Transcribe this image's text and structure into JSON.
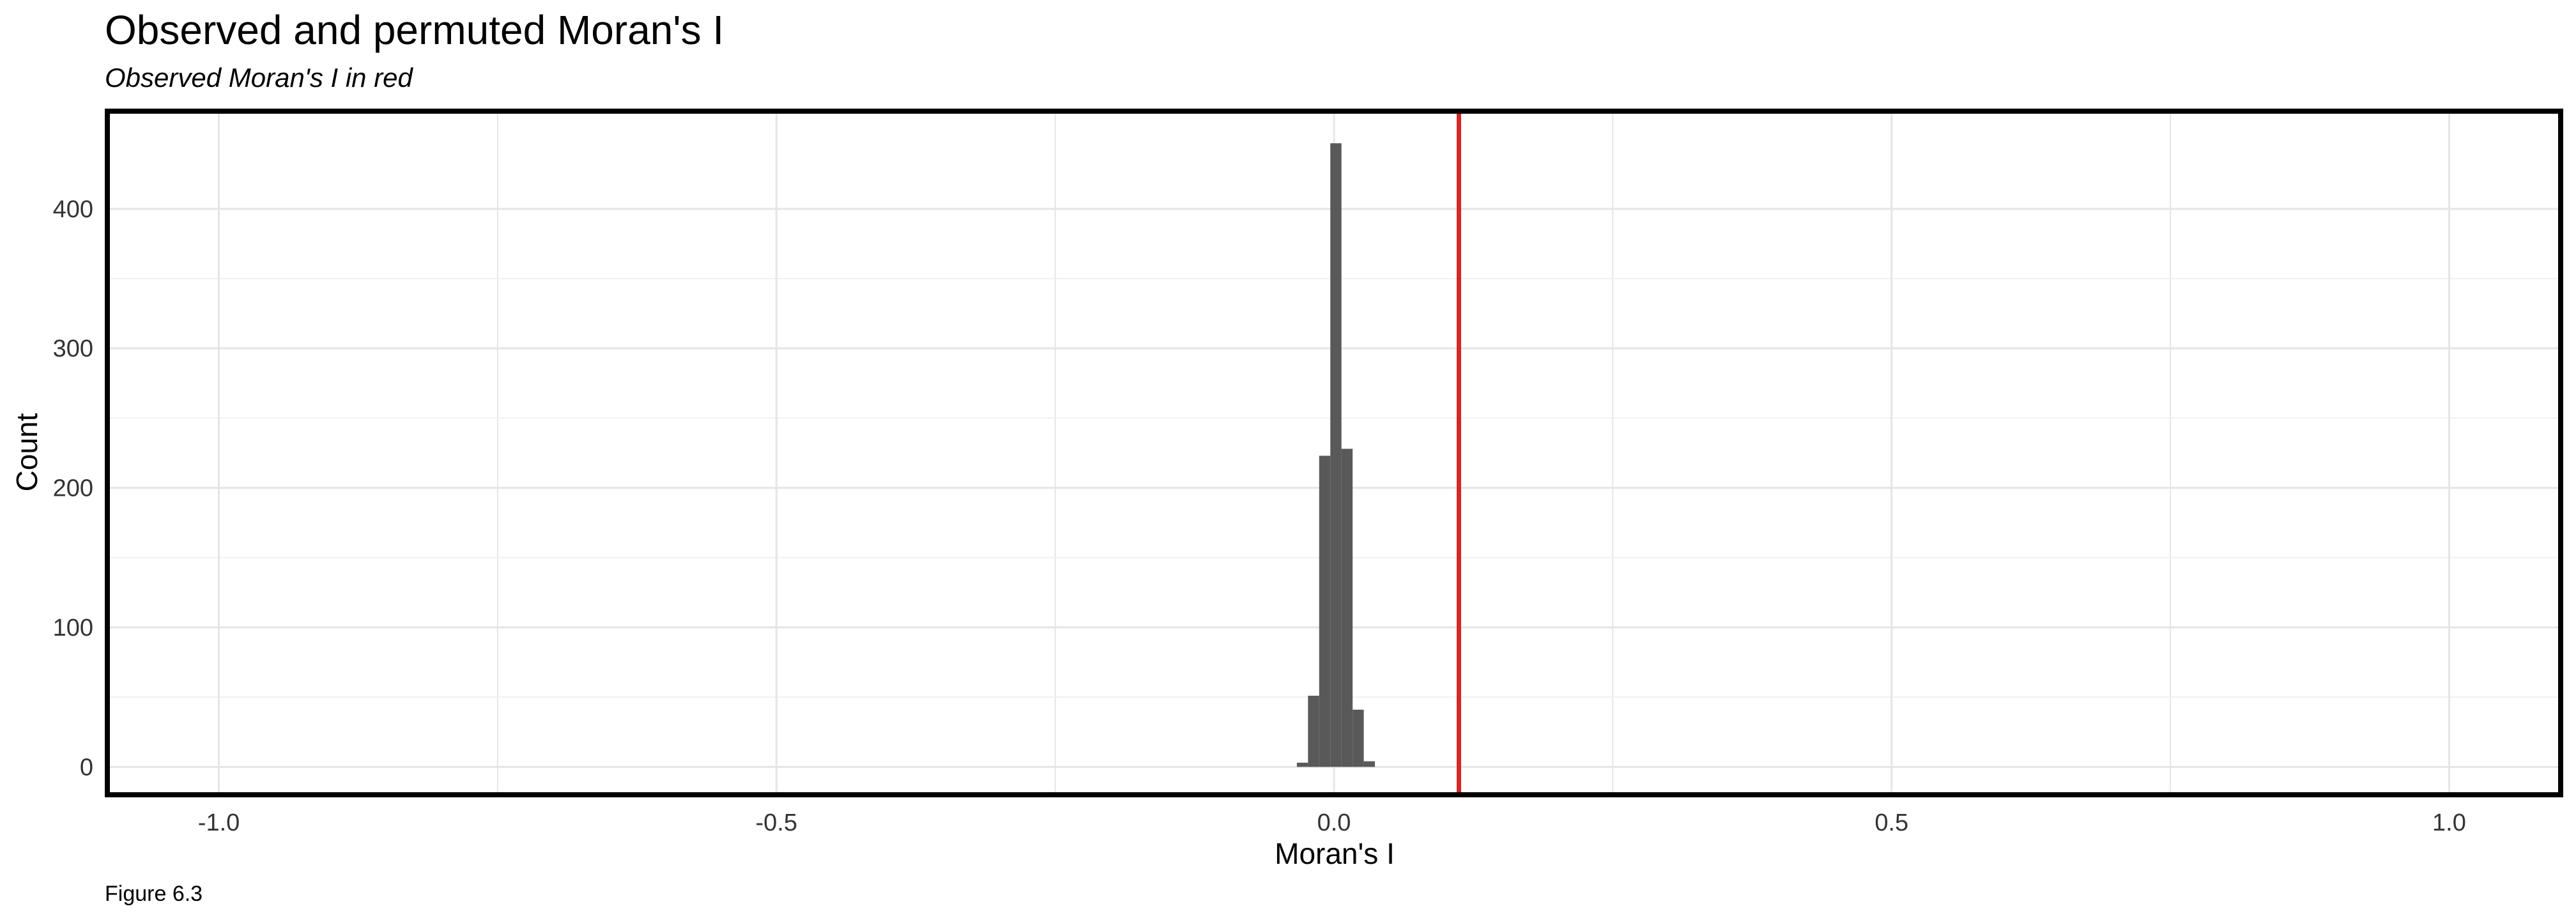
{
  "title": "Observed and permuted Moran's I",
  "subtitle": "Observed Moran's I in red",
  "caption": "Figure 6.3",
  "chart_data": {
    "type": "bar",
    "subtype": "histogram",
    "title": "Observed and permuted Moran's I",
    "subtitle": "Observed Moran's I in red",
    "xlabel": "Moran's I",
    "ylabel": "Count",
    "xlim": [
      -1.1,
      1.1
    ],
    "ylim": [
      -20,
      470
    ],
    "x_ticks": [
      -1.0,
      -0.5,
      0.0,
      0.5,
      1.0
    ],
    "x_tick_labels": [
      "-1.0",
      "-0.5",
      "0.0",
      "0.5",
      "1.0"
    ],
    "y_ticks": [
      0,
      100,
      200,
      300,
      400
    ],
    "y_tick_labels": [
      "0",
      "100",
      "200",
      "300",
      "400"
    ],
    "bins": [
      {
        "x0": -0.0333,
        "x1": -0.0233,
        "count": 3
      },
      {
        "x0": -0.0233,
        "x1": -0.0133,
        "count": 51
      },
      {
        "x0": -0.0133,
        "x1": -0.0033,
        "count": 223
      },
      {
        "x0": -0.0033,
        "x1": 0.0067,
        "count": 447
      },
      {
        "x0": 0.0067,
        "x1": 0.0167,
        "count": 228
      },
      {
        "x0": 0.0167,
        "x1": 0.0267,
        "count": 41
      },
      {
        "x0": 0.0267,
        "x1": 0.0367,
        "count": 4
      }
    ],
    "observed_value": 0.112,
    "grid": true,
    "colors": {
      "bars": "#595959",
      "observed_line": "#d62728",
      "grid": "#e5e5e5",
      "frame": "#000000"
    }
  }
}
